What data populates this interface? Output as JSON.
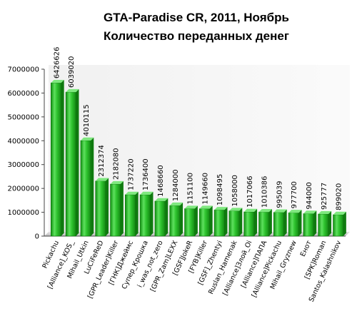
{
  "chart_data": {
    "type": "bar",
    "title": "GTA-Paradise CR, 2011, Ноябрь",
    "subtitle": "Количество переданных денег",
    "xlabel": "",
    "ylabel": "",
    "ylim": [
      0,
      7000000
    ],
    "yticks": [
      0,
      1000000,
      2000000,
      3000000,
      4000000,
      5000000,
      6000000,
      7000000
    ],
    "grid": false,
    "legend": "none",
    "bar_color": "#22b322",
    "categories": [
      "Pickachu",
      "[Alliance]_KOS_",
      "Mihail_Utkin",
      "LuCiFeReD",
      "[GPR_Leader]Killer",
      "[ГНК]Джеймс",
      "Супер_Крошка",
      "i_was_not_zero",
      "[GPR_Zam]LEXX",
      "[GSF]JokeR",
      "[FYB]Killer",
      "[GSF]_Zhentyi",
      "Ruslan_Hamenak",
      "[Alliance]Злой_Oi",
      "[Alliance]ПАПА",
      "[Alliance]Pickachu",
      "Mihail_Gryznew",
      "Енот",
      "[SPK]Roman",
      "Santos_Kalashnikov"
    ],
    "values": [
      6426626,
      6039020,
      4010115,
      2312374,
      2182080,
      1737220,
      1736400,
      1468660,
      1284000,
      1151100,
      1149660,
      1098495,
      1058000,
      1017066,
      1010386,
      995039,
      977700,
      944000,
      925777,
      899020
    ]
  }
}
